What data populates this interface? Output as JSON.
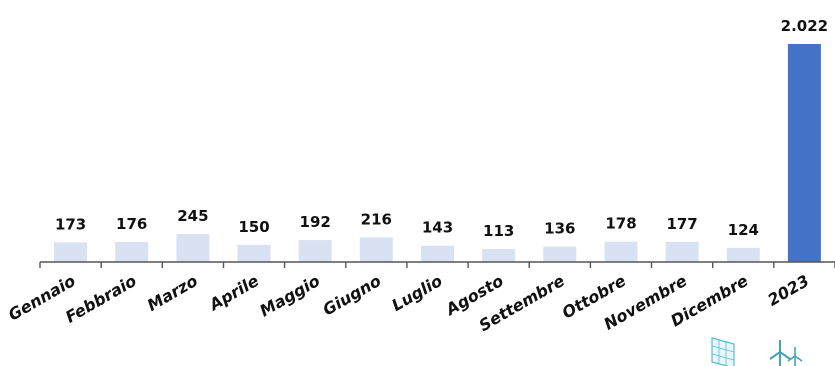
{
  "chart_data": {
    "type": "bar",
    "categories": [
      "Gennaio",
      "Febbraio",
      "Marzo",
      "Aprile",
      "Maggio",
      "Giugno",
      "Luglio",
      "Agosto",
      "Settembre",
      "Ottobre",
      "Novembre",
      "Dicembre",
      "2023"
    ],
    "values": [
      173,
      176,
      245,
      150,
      192,
      216,
      143,
      113,
      136,
      178,
      177,
      124,
      2022
    ],
    "value_labels": [
      "173",
      "176",
      "245",
      "150",
      "192",
      "216",
      "143",
      "113",
      "136",
      "178",
      "177",
      "124",
      "2.022"
    ],
    "title": "",
    "xlabel": "",
    "ylabel": "",
    "ylim": [
      0,
      2022
    ],
    "grid": false,
    "legend": "none",
    "colors": {
      "monthly_bar": "#d9e2f3",
      "total_bar": "#4472c4",
      "axis": "#555555",
      "icon": "#42b8d4"
    }
  },
  "decorations": [
    "solar-panel-icon",
    "wind-turbine-icon"
  ]
}
